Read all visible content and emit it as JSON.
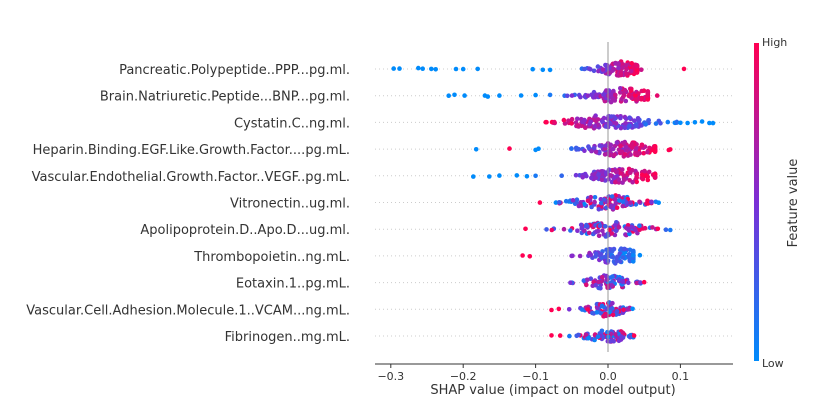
{
  "chart_data": {
    "type": "scatter",
    "subtype": "shap-beeswarm",
    "xlabel": "SHAP value (impact on model output)",
    "xlim": [
      -0.32,
      0.17
    ],
    "xticks": [
      -0.3,
      -0.2,
      -0.1,
      0.0,
      0.1
    ],
    "xtick_labels": [
      "−0.3",
      "−0.2",
      "−0.1",
      "0.0",
      "0.1"
    ],
    "colorbar": {
      "label": "Feature value",
      "high": "High",
      "low": "Low",
      "colors": [
        "#008bfb",
        "#ff0052"
      ]
    },
    "grid": false,
    "features": [
      {
        "name": "Pancreatic.Polypeptide..PPP...pg.ml.",
        "outliers": [
          [
            -0.296,
            0
          ],
          [
            -0.288,
            0
          ],
          [
            -0.262,
            0
          ],
          [
            -0.256,
            0
          ],
          [
            -0.244,
            0
          ],
          [
            -0.238,
            0
          ],
          [
            -0.21,
            0
          ],
          [
            -0.2,
            0
          ],
          [
            -0.18,
            0
          ],
          [
            -0.104,
            0
          ],
          [
            -0.09,
            0
          ],
          [
            -0.08,
            0
          ],
          [
            0.105,
            1
          ],
          [
            0.046,
            0.8
          ]
        ],
        "min": -0.06,
        "max": 0.04,
        "center": 0.018,
        "color_mode": "high_right",
        "n": 120
      },
      {
        "name": "Brain.Natriuretic.Peptide...BNP...pg.ml.",
        "outliers": [
          [
            -0.22,
            0
          ],
          [
            -0.212,
            0
          ],
          [
            -0.198,
            0
          ],
          [
            -0.17,
            0
          ],
          [
            -0.166,
            0
          ],
          [
            -0.15,
            0
          ],
          [
            -0.12,
            0
          ],
          [
            -0.1,
            0
          ],
          [
            -0.08,
            0.1
          ],
          [
            0.068,
            0.9
          ]
        ],
        "min": -0.095,
        "max": 0.055,
        "center": 0.02,
        "color_mode": "high_right",
        "n": 110
      },
      {
        "name": "Cystatin.C..ng.ml.",
        "outliers": [
          [
            0.1,
            0
          ],
          [
            0.11,
            0
          ],
          [
            0.12,
            0
          ],
          [
            0.13,
            0
          ],
          [
            0.145,
            0
          ],
          [
            0.14,
            0
          ],
          [
            -0.086,
            1
          ]
        ],
        "min": -0.085,
        "max": 0.095,
        "center": 0.0,
        "color_mode": "low_right",
        "n": 130
      },
      {
        "name": "Heparin.Binding.EGF.Like.Growth.Factor....pg.mL.",
        "outliers": [
          [
            -0.182,
            0
          ],
          [
            -0.136,
            1
          ],
          [
            -0.1,
            0
          ],
          [
            -0.096,
            0
          ],
          [
            0.086,
            1
          ],
          [
            0.084,
            1
          ]
        ],
        "min": -0.085,
        "max": 0.065,
        "center": 0.02,
        "color_mode": "high_right",
        "n": 120
      },
      {
        "name": "Vascular.Endothelial.Growth.Factor..VEGF..pg.mL.",
        "outliers": [
          [
            -0.186,
            0
          ],
          [
            -0.164,
            0
          ],
          [
            -0.15,
            0
          ],
          [
            -0.126,
            0
          ],
          [
            -0.112,
            0
          ],
          [
            -0.1,
            0.1
          ]
        ],
        "min": -0.09,
        "max": 0.065,
        "center": 0.02,
        "color_mode": "high_right",
        "n": 110
      },
      {
        "name": "Vitronectin..ug.ml.",
        "outliers": [
          [
            -0.094,
            1
          ],
          [
            0.066,
            0.1
          ],
          [
            0.07,
            0
          ]
        ],
        "min": -0.09,
        "max": 0.06,
        "center": 0.0,
        "color_mode": "mixed",
        "n": 100
      },
      {
        "name": "Apolipoprotein.D..Apo.D...ug.ml.",
        "outliers": [
          [
            -0.114,
            1
          ],
          [
            0.086,
            0.1
          ]
        ],
        "min": -0.085,
        "max": 0.08,
        "center": 0.0,
        "color_mode": "mixed",
        "n": 100
      },
      {
        "name": "Thrombopoietin..ng.mL.",
        "outliers": [
          [
            -0.118,
            1
          ],
          [
            -0.108,
            1
          ],
          [
            0.044,
            0
          ]
        ],
        "min": -0.1,
        "max": 0.035,
        "center": 0.012,
        "color_mode": "low_right",
        "n": 90
      },
      {
        "name": "Eotaxin.1..pg.mL.",
        "outliers": [
          [
            0.05,
            1
          ],
          [
            -0.052,
            0.5
          ]
        ],
        "min": -0.05,
        "max": 0.045,
        "center": 0.0,
        "color_mode": "mixed",
        "n": 80
      },
      {
        "name": "Vascular.Cell.Adhesion.Molecule.1..VCAM...ng.mL.",
        "outliers": [
          [
            -0.078,
            1
          ],
          [
            -0.068,
            1
          ],
          [
            0.034,
            0
          ]
        ],
        "min": -0.06,
        "max": 0.03,
        "center": 0.0,
        "color_mode": "mixed",
        "n": 80
      },
      {
        "name": "Fibrinogen..mg.mL.",
        "outliers": [
          [
            -0.078,
            1
          ],
          [
            -0.066,
            1
          ],
          [
            0.036,
            1
          ]
        ],
        "min": -0.06,
        "max": 0.035,
        "center": 0.0,
        "color_mode": "mixed",
        "n": 80
      }
    ]
  }
}
